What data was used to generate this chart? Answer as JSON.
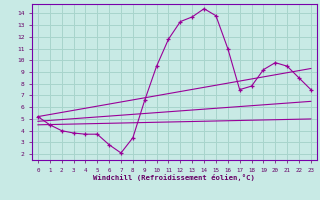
{
  "xlabel": "Windchill (Refroidissement éolien,°C)",
  "bg_color": "#c8eae5",
  "grid_color": "#a8d4cc",
  "line_color": "#990099",
  "xlim": [
    -0.5,
    23.5
  ],
  "ylim": [
    1.5,
    14.8
  ],
  "xticks": [
    0,
    1,
    2,
    3,
    4,
    5,
    6,
    7,
    8,
    9,
    10,
    11,
    12,
    13,
    14,
    15,
    16,
    17,
    18,
    19,
    20,
    21,
    22,
    23
  ],
  "yticks": [
    2,
    3,
    4,
    5,
    6,
    7,
    8,
    9,
    10,
    11,
    12,
    13,
    14
  ],
  "main_x": [
    0,
    1,
    2,
    3,
    4,
    5,
    6,
    7,
    8,
    9,
    10,
    11,
    12,
    13,
    14,
    15,
    16,
    17,
    18,
    19,
    20,
    21,
    22,
    23
  ],
  "main_y": [
    5.2,
    4.5,
    4.0,
    3.8,
    3.7,
    3.7,
    2.8,
    2.1,
    3.4,
    6.6,
    9.5,
    11.8,
    13.3,
    13.7,
    14.4,
    13.8,
    11.0,
    7.5,
    7.8,
    9.2,
    9.8,
    9.5,
    8.5,
    7.5
  ],
  "line1_x": [
    0,
    23
  ],
  "line1_y": [
    5.2,
    9.3
  ],
  "line2_x": [
    0,
    23
  ],
  "line2_y": [
    4.8,
    6.5
  ],
  "line3_x": [
    0,
    23
  ],
  "line3_y": [
    4.5,
    5.0
  ]
}
